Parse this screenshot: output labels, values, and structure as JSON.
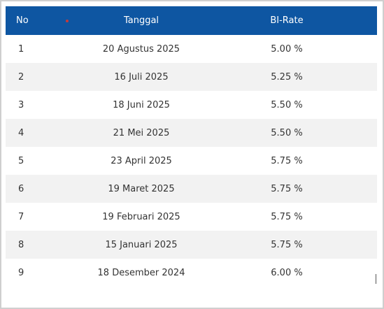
{
  "table": {
    "headers": {
      "no": "No",
      "date": "Tanggal",
      "rate": "BI-Rate"
    },
    "rows": [
      {
        "no": "1",
        "date": "20 Agustus 2025",
        "rate": "5.00 %"
      },
      {
        "no": "2",
        "date": "16 Juli 2025",
        "rate": "5.25 %"
      },
      {
        "no": "3",
        "date": "18 Juni 2025",
        "rate": "5.50 %"
      },
      {
        "no": "4",
        "date": "21 Mei 2025",
        "rate": "5.50 %"
      },
      {
        "no": "5",
        "date": "23 April 2025",
        "rate": "5.75 %"
      },
      {
        "no": "6",
        "date": "19 Maret 2025",
        "rate": "5.75 %"
      },
      {
        "no": "7",
        "date": "19 Februari 2025",
        "rate": "5.75 %"
      },
      {
        "no": "8",
        "date": "15 Januari 2025",
        "rate": "5.75 %"
      },
      {
        "no": "9",
        "date": "18 Desember 2024",
        "rate": "6.00 %"
      }
    ]
  },
  "colors": {
    "header_bg": "#0e56a2",
    "stripe_bg": "#f2f2f2",
    "sort_indicator": "#c73a3a"
  },
  "icons": {
    "sort_indicator": "sort-indicator-icon"
  }
}
